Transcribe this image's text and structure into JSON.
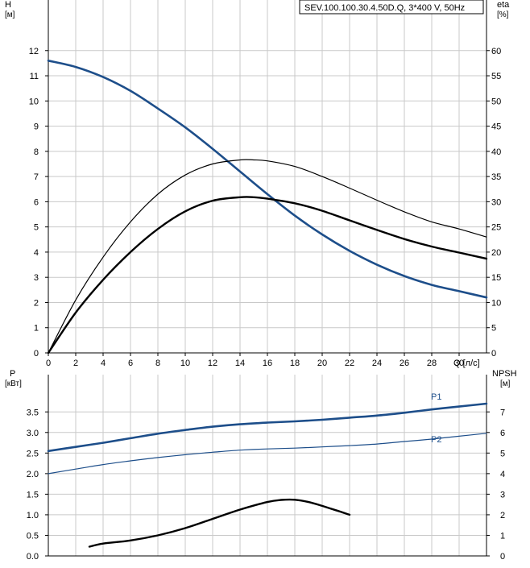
{
  "legend_box": "SEV.100.100.30.4.50D.Q, 3*400 V, 50Hz",
  "colors": {
    "blue": "#1d4e8a",
    "black": "#000000",
    "grid": "#c9c9c9"
  },
  "chart_data": [
    {
      "type": "line",
      "panel": "upper",
      "ylabel_left": "H",
      "yunit_left": "[м]",
      "ylabel_right": "eta",
      "yunit_right": "[%]",
      "xlabel": "Q [л/с]",
      "xlim": [
        0,
        32
      ],
      "xticks": [
        0,
        2,
        4,
        6,
        8,
        10,
        12,
        14,
        16,
        18,
        20,
        22,
        24,
        26,
        28,
        30
      ],
      "ylim_left": [
        0,
        13
      ],
      "yticks_left": [
        0,
        1,
        2,
        3,
        4,
        5,
        6,
        7,
        8,
        9,
        10,
        11,
        12
      ],
      "ylim_right": [
        0,
        65
      ],
      "yticks_right": [
        0,
        5,
        10,
        15,
        20,
        25,
        30,
        35,
        40,
        45,
        50,
        55,
        60
      ],
      "grid": true,
      "series": [
        {
          "axis": "left",
          "color": "#1d4e8a",
          "width": 2.6,
          "x": [
            0,
            2,
            4,
            6,
            8,
            10,
            12,
            14,
            16,
            18,
            20,
            22,
            24,
            26,
            28,
            30,
            32
          ],
          "y": [
            11.6,
            11.35,
            10.95,
            10.4,
            9.7,
            8.95,
            8.1,
            7.2,
            6.3,
            5.45,
            4.7,
            4.05,
            3.5,
            3.05,
            2.7,
            2.45,
            2.2
          ]
        },
        {
          "axis": "right",
          "color": "#000000",
          "width": 1.2,
          "x": [
            0,
            2,
            4,
            6,
            8,
            10,
            12,
            14,
            15,
            16,
            18,
            20,
            22,
            24,
            26,
            28,
            30,
            32
          ],
          "y": [
            0,
            10.5,
            19,
            26,
            31.5,
            35.3,
            37.5,
            38.3,
            38.3,
            38.1,
            37,
            35,
            32.7,
            30.3,
            28,
            26,
            24.6,
            23
          ]
        },
        {
          "axis": "right",
          "color": "#000000",
          "width": 2.4,
          "x": [
            0,
            2,
            4,
            6,
            8,
            10,
            12,
            14,
            15,
            16,
            18,
            20,
            22,
            24,
            26,
            28,
            30,
            32
          ],
          "y": [
            0,
            8,
            14.5,
            20,
            24.6,
            28.1,
            30.2,
            30.9,
            30.9,
            30.6,
            29.7,
            28.2,
            26.3,
            24.4,
            22.6,
            21.1,
            19.9,
            18.7
          ]
        }
      ]
    },
    {
      "type": "line",
      "panel": "lower",
      "ylabel_left": "P",
      "yunit_left": "[кВт]",
      "ylabel_right": "NPSH",
      "yunit_right": "[м]",
      "xlim": [
        0,
        32
      ],
      "ylim_left": [
        0,
        4.2
      ],
      "yticks_left": [
        "0.0",
        "0.5",
        "1.0",
        "1.5",
        "2.0",
        "2.5",
        "3.0",
        "3.5"
      ],
      "ylim_right": [
        0,
        8.4
      ],
      "yticks_right": [
        0,
        1,
        2,
        3,
        4,
        5,
        6,
        7
      ],
      "grid": true,
      "series": [
        {
          "name": "P1",
          "axis": "left",
          "color": "#1d4e8a",
          "width": 2.6,
          "x": [
            0,
            2,
            4,
            6,
            8,
            10,
            12,
            14,
            16,
            18,
            20,
            22,
            24,
            26,
            28,
            30,
            32
          ],
          "y": [
            2.55,
            2.65,
            2.75,
            2.86,
            2.97,
            3.06,
            3.14,
            3.2,
            3.24,
            3.27,
            3.31,
            3.36,
            3.41,
            3.48,
            3.56,
            3.63,
            3.7
          ]
        },
        {
          "name": "P2",
          "axis": "left",
          "color": "#1d4e8a",
          "width": 1.2,
          "x": [
            0,
            2,
            4,
            6,
            8,
            10,
            12,
            14,
            16,
            18,
            20,
            22,
            24,
            26,
            28,
            30,
            32
          ],
          "y": [
            2.0,
            2.11,
            2.22,
            2.31,
            2.39,
            2.46,
            2.52,
            2.57,
            2.6,
            2.62,
            2.65,
            2.68,
            2.72,
            2.78,
            2.84,
            2.91,
            2.98
          ]
        },
        {
          "axis": "right",
          "color": "#000000",
          "width": 2.4,
          "x": [
            3,
            4,
            6,
            8,
            10,
            12,
            14,
            16,
            17,
            18,
            19,
            20,
            21,
            22
          ],
          "y": [
            0.45,
            0.6,
            0.75,
            1.0,
            1.35,
            1.8,
            2.25,
            2.62,
            2.72,
            2.73,
            2.62,
            2.43,
            2.22,
            2.0
          ]
        }
      ]
    }
  ]
}
